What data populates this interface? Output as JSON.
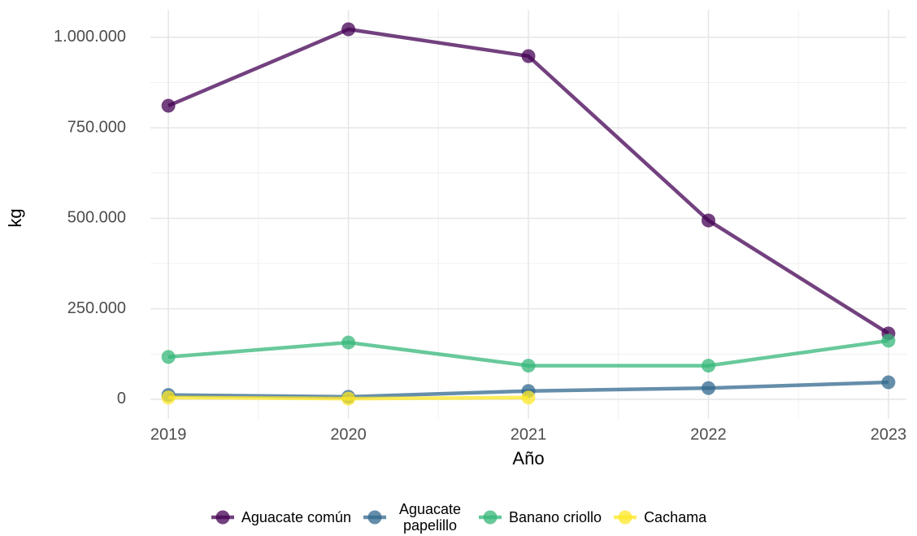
{
  "chart_data": {
    "type": "line",
    "x": [
      2019,
      2020,
      2021,
      2022,
      2023
    ],
    "xlim": [
      2018.9,
      2023.1
    ],
    "xticks": [
      2019,
      2020,
      2021,
      2022,
      2023
    ],
    "ylim": [
      -54000,
      1076000
    ],
    "yticks": [
      0,
      {
        "value": 250000,
        "label": "250.000"
      },
      {
        "value": 500000,
        "label": "500.000"
      },
      {
        "value": 750000,
        "label": "750.000"
      },
      {
        "value": 1000000,
        "label": "1.000.000"
      }
    ],
    "x_label": "Año",
    "y_label": "kg",
    "grid": true,
    "legend": "bottom",
    "series": [
      {
        "name": "Aguacate común",
        "color": "#440154",
        "values": [
          811000,
          1022000,
          948000,
          494000,
          182000
        ]
      },
      {
        "name": "Aguacate papelillo",
        "color": "#31688e",
        "values": [
          12000,
          7000,
          23000,
          31000,
          47000
        ]
      },
      {
        "name": "Banano criollo",
        "color": "#35b779",
        "values": [
          117000,
          157000,
          93000,
          93000,
          162000
        ]
      },
      {
        "name": "Cachama",
        "color": "#fde725",
        "values": [
          5000,
          2000,
          5000,
          null,
          null
        ]
      }
    ]
  }
}
